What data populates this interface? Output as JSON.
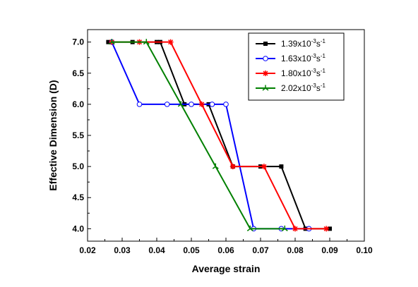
{
  "chart_data": {
    "type": "line",
    "xlabel": "Average strain",
    "ylabel": "Effective Dimension (D)",
    "xlim": [
      0.02,
      0.1
    ],
    "ylim": [
      3.8,
      7.2
    ],
    "x_ticks": [
      "0.02",
      "0.03",
      "0.04",
      "0.05",
      "0.06",
      "0.07",
      "0.08",
      "0.09",
      "0.10"
    ],
    "y_ticks": [
      "4.0",
      "4.5",
      "5.0",
      "5.5",
      "6.0",
      "6.5",
      "7.0"
    ],
    "grid": false,
    "legend_position": "top-right",
    "series": [
      {
        "name_base": "1.39x10",
        "name_exp1": "-3",
        "name_unit": "s",
        "name_exp2": "-1",
        "color": "#000000",
        "marker": "square-filled",
        "points": [
          [
            0.026,
            7.0
          ],
          [
            0.033,
            7.0
          ],
          [
            0.04,
            7.0
          ],
          [
            0.041,
            7.0
          ],
          [
            0.048,
            6.0
          ],
          [
            0.055,
            6.0
          ],
          [
            0.062,
            5.0
          ],
          [
            0.07,
            5.0
          ],
          [
            0.076,
            5.0
          ],
          [
            0.083,
            4.0
          ],
          [
            0.09,
            4.0
          ]
        ]
      },
      {
        "name_base": "1.63x10",
        "name_exp1": "-3",
        "name_unit": "s",
        "name_exp2": "-1",
        "color": "#0000ff",
        "marker": "circle-open",
        "points": [
          [
            0.027,
            7.0
          ],
          [
            0.035,
            6.0
          ],
          [
            0.043,
            6.0
          ],
          [
            0.05,
            6.0
          ],
          [
            0.056,
            6.0
          ],
          [
            0.06,
            6.0
          ],
          [
            0.068,
            4.0
          ],
          [
            0.076,
            4.0
          ],
          [
            0.084,
            4.0
          ]
        ]
      },
      {
        "name_base": "1.80x10",
        "name_exp1": "-3",
        "name_unit": "s",
        "name_exp2": "-1",
        "color": "#ff0000",
        "marker": "star",
        "points": [
          [
            0.027,
            7.0
          ],
          [
            0.035,
            7.0
          ],
          [
            0.044,
            7.0
          ],
          [
            0.053,
            6.0
          ],
          [
            0.062,
            5.0
          ],
          [
            0.071,
            5.0
          ],
          [
            0.08,
            4.0
          ],
          [
            0.089,
            4.0
          ]
        ]
      },
      {
        "name_base": "2.02x10",
        "name_exp1": "-3",
        "name_unit": "s",
        "name_exp2": "-1",
        "color": "#008000",
        "marker": "tri-cross",
        "points": [
          [
            0.027,
            7.0
          ],
          [
            0.037,
            7.0
          ],
          [
            0.047,
            6.0
          ],
          [
            0.057,
            5.0
          ],
          [
            0.067,
            4.0
          ],
          [
            0.077,
            4.0
          ]
        ]
      }
    ]
  }
}
